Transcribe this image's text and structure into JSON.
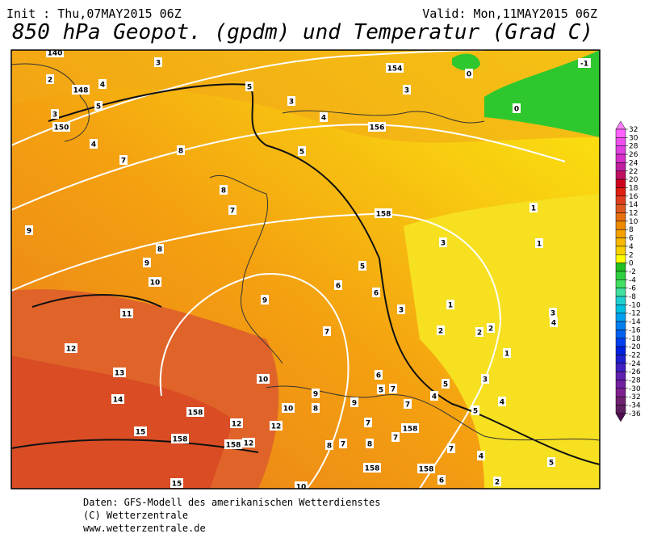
{
  "header": {
    "init": "Init : Thu,07MAY2015 06Z",
    "valid": "Valid: Mon,11MAY2015 06Z",
    "title": "850 hPa Geopot. (gpdm) und Temperatur (Grad C)"
  },
  "colorbar": {
    "ticks": [
      32,
      30,
      28,
      26,
      24,
      22,
      20,
      18,
      16,
      14,
      12,
      10,
      8,
      6,
      4,
      2,
      0,
      -2,
      -4,
      -6,
      -8,
      -10,
      -12,
      -14,
      -16,
      -18,
      -20,
      -22,
      -24,
      -26,
      -28,
      -30,
      -32,
      -34,
      -36
    ],
    "colors": [
      "#ff80ff",
      "#ff60ff",
      "#f050f0",
      "#e040e0",
      "#d830c8",
      "#c020a0",
      "#c01060",
      "#d00020",
      "#e02010",
      "#e04020",
      "#e05a20",
      "#e87010",
      "#f08a00",
      "#f4a000",
      "#f8b800",
      "#f8d000",
      "#ffff00",
      "#20c020",
      "#30d040",
      "#40e060",
      "#40e0a0",
      "#20d0d0",
      "#00c0e0",
      "#00a0f0",
      "#0080f0",
      "#0060f0",
      "#0040f0",
      "#0020e0",
      "#2020d0",
      "#4020c0",
      "#6020b0",
      "#7020a0",
      "#802090",
      "#702070",
      "#602060",
      "#501050"
    ]
  },
  "map": {
    "labels": [
      "140",
      "3",
      "2",
      "148",
      "4",
      "5",
      "5",
      "3",
      "150",
      "4",
      "8",
      "7",
      "3",
      "4",
      "154",
      "3",
      "0",
      "-1",
      "0",
      "156",
      "5",
      "8",
      "7",
      "9",
      "158",
      "1",
      "1",
      "3",
      "8",
      "9",
      "5",
      "6",
      "6",
      "10",
      "9",
      "11",
      "3",
      "1",
      "3",
      "4",
      "2",
      "2",
      "2",
      "7",
      "12",
      "1",
      "13",
      "10",
      "6",
      "5",
      "7",
      "5",
      "3",
      "4",
      "14",
      "9",
      "8",
      "9",
      "7",
      "5",
      "4",
      "10",
      "15",
      "158",
      "12",
      "12",
      "158",
      "158",
      "12",
      "7",
      "158",
      "7",
      "8",
      "7",
      "8",
      "7",
      "4",
      "5",
      "158",
      "158",
      "6",
      "2",
      "15",
      "10"
    ]
  },
  "footer": {
    "lines": [
      "Daten: GFS-Modell des amerikanischen Wetterdienstes",
      "(C) Wetterzentrale",
      "www.wetterzentrale.de"
    ]
  }
}
